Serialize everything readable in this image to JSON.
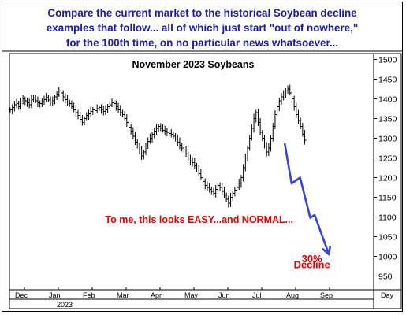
{
  "header": {
    "lines": [
      "Compare the current market to the historical Soybean decline",
      "examples that follow... all of which just start \"out of nowhere,\"",
      "for the 100th time, on no particular news whatsoever..."
    ]
  },
  "colors": {
    "header_text": "#1a1aa6",
    "annotation_text": "#e00000",
    "projection_arrow": "#3a47c8",
    "price_bars": "#000000"
  },
  "chart_data": {
    "type": "bar",
    "subtype": "ohlc",
    "title": "November 2023 Soybeans",
    "x_tick_labels": [
      "Dec",
      "Jan",
      "Feb",
      "Mar",
      "Apr",
      "May",
      "Jun",
      "Jul",
      "Aug",
      "Sep"
    ],
    "x_year_label": "2023",
    "x_unit_label": "Day",
    "y_ticks": [
      950,
      1000,
      1050,
      1100,
      1150,
      1200,
      1250,
      1300,
      1350,
      1400,
      1450,
      1500
    ],
    "ylim": [
      915,
      1515
    ],
    "grid": false,
    "price_series": {
      "month_index_start": 0.0,
      "month_index_step": 0.0625,
      "values": [
        1372,
        1378,
        1385,
        1388,
        1380,
        1392,
        1400,
        1395,
        1390,
        1385,
        1398,
        1402,
        1395,
        1390,
        1388,
        1393,
        1398,
        1403,
        1397,
        1392,
        1395,
        1405,
        1412,
        1420,
        1415,
        1405,
        1398,
        1392,
        1388,
        1380,
        1372,
        1365,
        1358,
        1348,
        1340,
        1350,
        1358,
        1362,
        1368,
        1372,
        1370,
        1375,
        1378,
        1373,
        1368,
        1372,
        1380,
        1385,
        1390,
        1388,
        1380,
        1372,
        1365,
        1360,
        1350,
        1340,
        1328,
        1318,
        1305,
        1290,
        1280,
        1270,
        1255,
        1265,
        1280,
        1292,
        1300,
        1310,
        1318,
        1325,
        1330,
        1325,
        1320,
        1318,
        1315,
        1312,
        1310,
        1305,
        1298,
        1290,
        1282,
        1275,
        1270,
        1260,
        1250,
        1242,
        1238,
        1230,
        1222,
        1210,
        1200,
        1190,
        1180,
        1175,
        1170,
        1165,
        1160,
        1170,
        1180,
        1175,
        1165,
        1155,
        1145,
        1135,
        1150,
        1160,
        1168,
        1175,
        1185,
        1200,
        1225,
        1250,
        1275,
        1300,
        1325,
        1350,
        1365,
        1340,
        1315,
        1300,
        1280,
        1265,
        1275,
        1300,
        1330,
        1360,
        1380,
        1395,
        1405,
        1410,
        1420,
        1425,
        1415,
        1400,
        1380,
        1360,
        1345,
        1330,
        1310,
        1295
      ]
    },
    "projection_path": [
      {
        "month": 8.1,
        "price": 1285
      },
      {
        "month": 8.3,
        "price": 1185
      },
      {
        "month": 8.55,
        "price": 1200
      },
      {
        "month": 8.85,
        "price": 1098
      },
      {
        "month": 8.98,
        "price": 1105
      },
      {
        "month": 9.4,
        "price": 1005
      }
    ],
    "annotations": [
      {
        "text": "To me, this looks EASY...and NORMAL...",
        "month": 2.8,
        "price": 1085
      },
      {
        "text": "30%",
        "month": 8.9,
        "price": 985
      },
      {
        "text": "Decline",
        "month": 8.9,
        "price": 970
      }
    ]
  }
}
